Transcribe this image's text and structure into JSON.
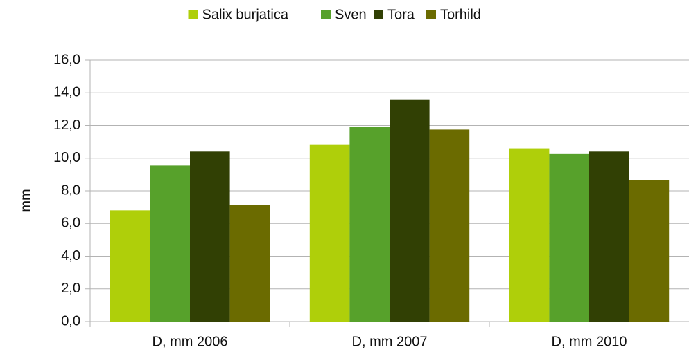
{
  "chart_data": {
    "type": "bar",
    "y_label": "mm",
    "categories": [
      "D, mm 2006",
      "D, mm 2007",
      "D, mm 2010"
    ],
    "series": [
      {
        "name": "Salix burjatica",
        "color": "#afcf0a",
        "values": [
          6.8,
          10.85,
          10.6
        ]
      },
      {
        "name": "Sven",
        "color": "#57a12b",
        "values": [
          9.55,
          11.9,
          10.25
        ]
      },
      {
        "name": "Tora",
        "color": "#314004",
        "values": [
          10.4,
          13.6,
          10.4
        ]
      },
      {
        "name": "Torhild",
        "color": "#6b6b00",
        "values": [
          7.15,
          11.75,
          8.65
        ]
      }
    ],
    "ylim": [
      0,
      16
    ],
    "yticks": [
      {
        "value": 0,
        "label": "0,0"
      },
      {
        "value": 2,
        "label": "2,0"
      },
      {
        "value": 4,
        "label": "4,0"
      },
      {
        "value": 6,
        "label": "6,0"
      },
      {
        "value": 8,
        "label": "8,0"
      },
      {
        "value": 10,
        "label": "10,0"
      },
      {
        "value": 12,
        "label": "12,0"
      },
      {
        "value": 14,
        "label": "14,0"
      },
      {
        "value": 16,
        "label": "16,0"
      }
    ],
    "grid": true,
    "legend": "top"
  }
}
